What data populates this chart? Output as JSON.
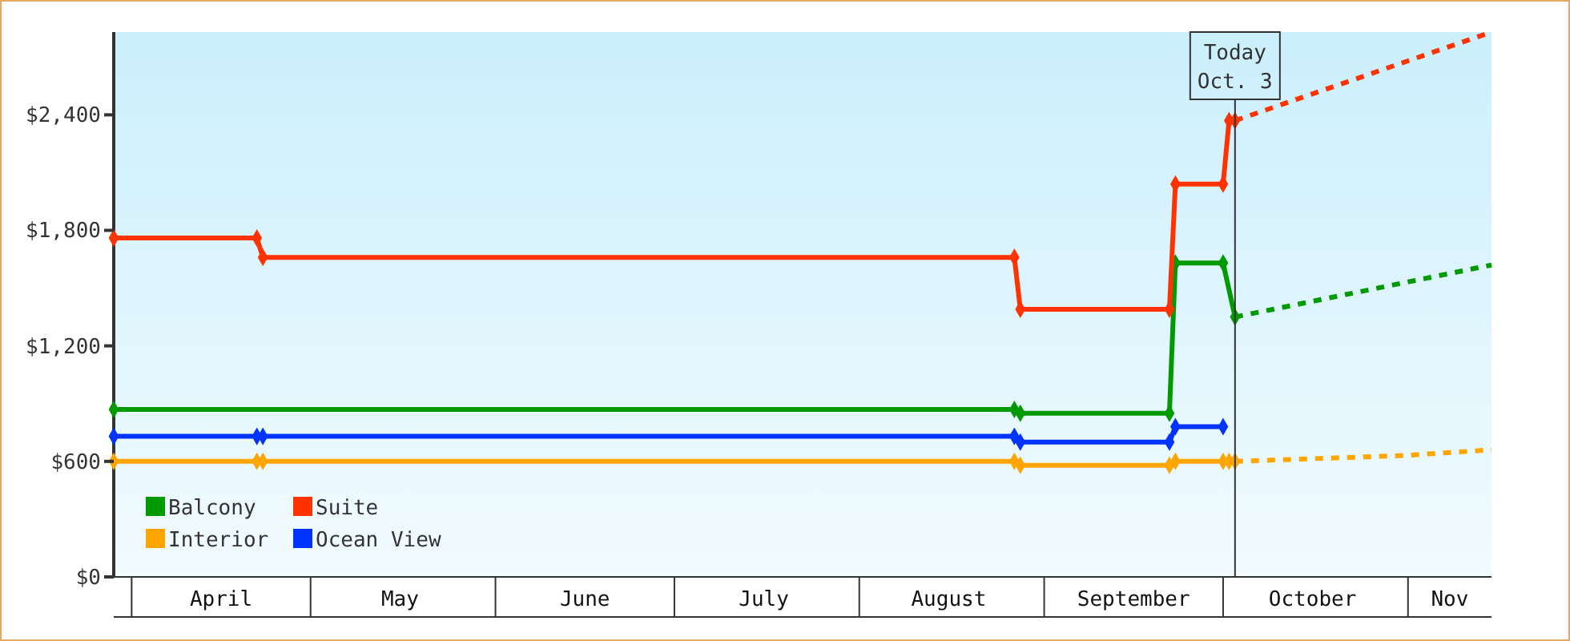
{
  "chart_data": {
    "type": "line",
    "xlim": [
      "--03-29",
      "--11-15"
    ],
    "xticks": [
      {
        "value": "--04-16",
        "label": "April"
      },
      {
        "value": "--05-16",
        "label": "May"
      },
      {
        "value": "--06-16",
        "label": "June"
      },
      {
        "value": "--07-16",
        "label": "July"
      },
      {
        "value": "--08-16",
        "label": "August"
      },
      {
        "value": "--09-16",
        "label": "September"
      },
      {
        "value": "--10-16",
        "label": "October"
      },
      {
        "value": "--11-08",
        "label": "Nov"
      }
    ],
    "ylim": [
      0,
      2830
    ],
    "yticks": [
      {
        "value": 0,
        "label": "$0"
      },
      {
        "value": 600,
        "label": "$600"
      },
      {
        "value": 1200,
        "label": "$1,200"
      },
      {
        "value": 1800,
        "label": "$1,800"
      },
      {
        "value": 2400,
        "label": "$2,400"
      }
    ],
    "grid": false,
    "legend": "bottom left",
    "marker": "diamond",
    "line_style": "solid",
    "series": [
      {
        "name": "Balcony",
        "color": "#009900",
        "x": [
          "--03-29",
          "--08-27",
          "--08-28",
          "--09-22",
          "--09-23",
          "--10-01",
          "--10-03"
        ],
        "values": [
          870,
          870,
          850,
          850,
          1630,
          1630,
          1350
        ]
      },
      {
        "name": "Suite",
        "color": "#ff3300",
        "x": [
          "--03-29",
          "--04-22",
          "--04-23",
          "--08-27",
          "--08-28",
          "--09-22",
          "--09-23",
          "--10-01",
          "--10-02",
          "--10-03"
        ],
        "values": [
          1760,
          1760,
          1660,
          1660,
          1390,
          1390,
          2040,
          2040,
          2370,
          2370
        ]
      },
      {
        "name": "Interior",
        "color": "#ffa500",
        "x": [
          "--03-29",
          "--04-22",
          "--04-23",
          "--08-27",
          "--08-28",
          "--09-22",
          "--09-23",
          "--10-01",
          "--10-02",
          "--10-03"
        ],
        "values": [
          600,
          600,
          600,
          600,
          580,
          580,
          600,
          600,
          600,
          600
        ]
      },
      {
        "name": "Ocean View",
        "color": "#0033ff",
        "x": [
          "--03-29",
          "--04-22",
          "--04-23",
          "--08-27",
          "--08-28",
          "--09-22",
          "--09-23",
          "--10-01"
        ],
        "values": [
          730,
          730,
          730,
          730,
          700,
          700,
          780,
          780
        ]
      },
      {
        "color": "#ff3300",
        "marker": "none",
        "line_style": "dashed",
        "x": [
          "--10-03",
          "--11-15"
        ],
        "values": [
          2370,
          2830
        ]
      },
      {
        "color": "#009900",
        "marker": "none",
        "line_style": "dashed",
        "x": [
          "--10-03",
          "--11-15"
        ],
        "values": [
          1350,
          1620
        ]
      },
      {
        "color": "#ffa500",
        "marker": "none",
        "line_style": "dashed",
        "x": [
          "--10-03",
          "--10-31",
          "--11-15"
        ],
        "values": [
          600,
          630,
          660
        ]
      }
    ],
    "ref_lines": [
      {
        "axis": "x",
        "value": "--10-03",
        "label": "Today\nOct. 3",
        "color": "#333333"
      }
    ]
  }
}
